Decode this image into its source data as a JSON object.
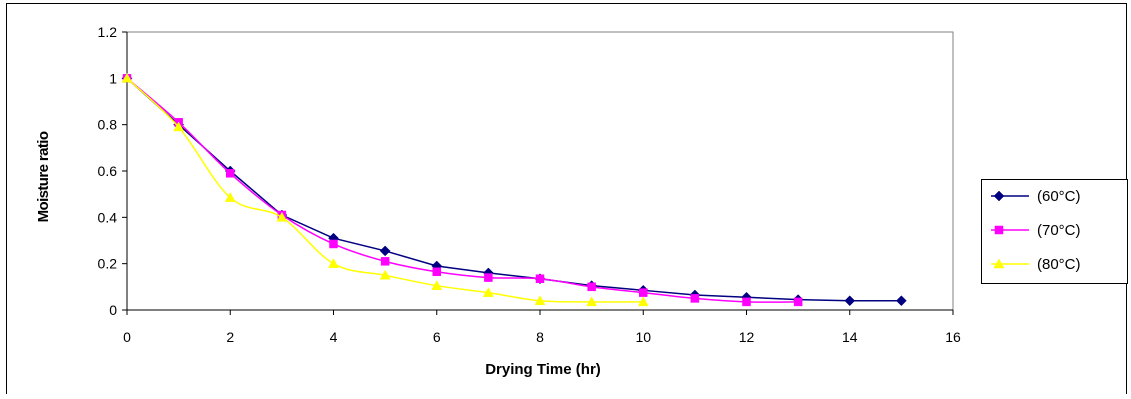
{
  "chart_data": {
    "type": "line",
    "title": "",
    "xlabel": "Drying Time (hr)",
    "ylabel": "Moisture ratio",
    "xlim": [
      0,
      16
    ],
    "ylim": [
      0,
      1.2
    ],
    "x_ticks": [
      0,
      2,
      4,
      6,
      8,
      10,
      12,
      14,
      16
    ],
    "y_ticks": [
      0,
      0.2,
      0.4,
      0.6,
      0.8,
      1,
      1.2
    ],
    "grid": false,
    "legend_position": "right",
    "series": [
      {
        "name": "(60°C)",
        "color": "#000080",
        "marker": "diamond",
        "smooth": false,
        "x": [
          0,
          1,
          2,
          3,
          4,
          5,
          6,
          7,
          8,
          9,
          10,
          11,
          12,
          13,
          14,
          15
        ],
        "y": [
          1,
          0.8,
          0.6,
          0.41,
          0.31,
          0.255,
          0.19,
          0.16,
          0.135,
          0.105,
          0.085,
          0.065,
          0.055,
          0.045,
          0.04,
          0.04
        ]
      },
      {
        "name": "(70°C)",
        "color": "#FF00FF",
        "marker": "square",
        "smooth": true,
        "x": [
          0,
          1,
          2,
          3,
          4,
          5,
          6,
          7,
          8,
          9,
          10,
          11,
          12,
          13
        ],
        "y": [
          1,
          0.81,
          0.59,
          0.41,
          0.285,
          0.21,
          0.165,
          0.14,
          0.135,
          0.1,
          0.075,
          0.05,
          0.035,
          0.035
        ]
      },
      {
        "name": "(80°C)",
        "color": "#FFFF00",
        "marker": "triangle",
        "smooth": true,
        "x": [
          0,
          1,
          2,
          3,
          4,
          5,
          6,
          7,
          8,
          9,
          10
        ],
        "y": [
          1,
          0.79,
          0.485,
          0.4,
          0.2,
          0.15,
          0.105,
          0.075,
          0.04,
          0.035,
          0.035
        ]
      }
    ]
  }
}
